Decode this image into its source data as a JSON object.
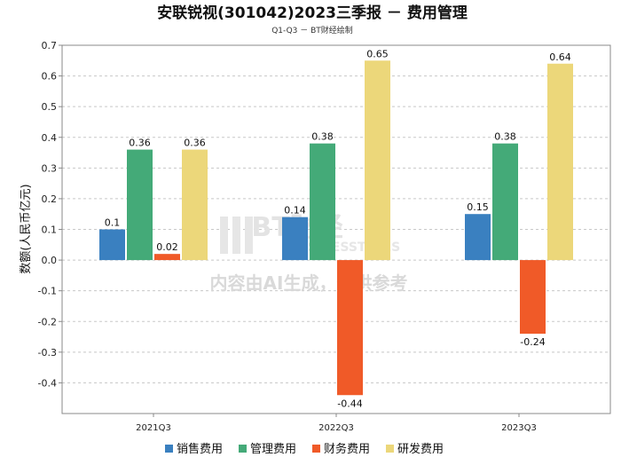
{
  "chart_data": {
    "type": "bar",
    "title": "安联锐视(301042)2023三季报 － 费用管理",
    "subtitle": "Q1-Q3 － BT财经绘制",
    "ylabel": "数额(人民币亿元)",
    "xlabel": "",
    "ylim": [
      -0.5,
      0.7
    ],
    "yticks": [
      "0.7",
      "0.6",
      "0.5",
      "0.4",
      "0.3",
      "0.2",
      "0.1",
      "0.0",
      "-0.1",
      "-0.2",
      "-0.3",
      "-0.4"
    ],
    "categories": [
      "2021Q3",
      "2022Q3",
      "2023Q3"
    ],
    "series": [
      {
        "name": "销售费用",
        "color": "#3a80c0",
        "values": [
          0.1,
          0.14,
          0.15
        ],
        "labels": [
          "0.1",
          "0.14",
          "0.15"
        ]
      },
      {
        "name": "管理费用",
        "color": "#44aa78",
        "values": [
          0.36,
          0.38,
          0.38
        ],
        "labels": [
          "0.36",
          "0.38",
          "0.38"
        ]
      },
      {
        "name": "财务费用",
        "color": "#f05a28",
        "values": [
          0.02,
          -0.44,
          -0.24
        ],
        "labels": [
          "0.02",
          "-0.44",
          "-0.24"
        ]
      },
      {
        "name": "研发费用",
        "color": "#ecd77a",
        "values": [
          0.36,
          0.65,
          0.64
        ],
        "labels": [
          "0.36",
          "0.65",
          "0.64"
        ]
      }
    ],
    "grid": true,
    "legend": "bottom"
  },
  "watermark": {
    "brand": "BT财经",
    "brand_en": "BUSINESSTIMES",
    "notice": "内容由AI生成，仅供参考"
  }
}
